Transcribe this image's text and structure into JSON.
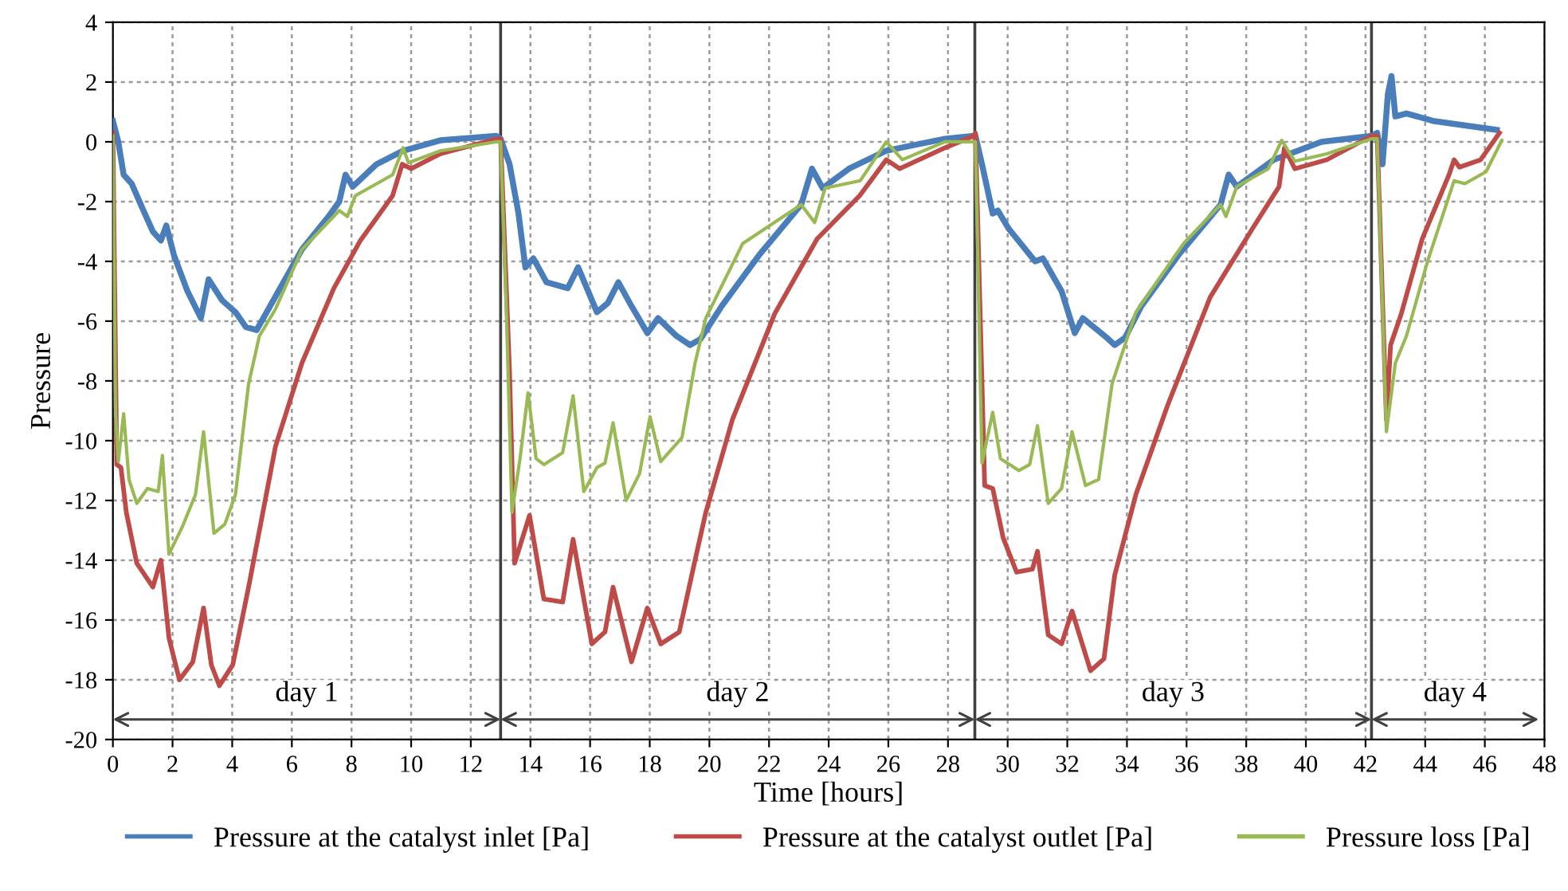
{
  "chart_data": {
    "type": "line",
    "xlabel": "Time [hours]",
    "ylabel": "Pressure",
    "xlim": [
      0,
      48
    ],
    "ylim": [
      -20,
      4
    ],
    "xticks": [
      0,
      2,
      4,
      6,
      8,
      10,
      12,
      14,
      16,
      18,
      20,
      22,
      24,
      26,
      28,
      30,
      32,
      34,
      36,
      38,
      40,
      42,
      44,
      46,
      48
    ],
    "yticks": [
      -20,
      -18,
      -16,
      -14,
      -12,
      -10,
      -8,
      -6,
      -4,
      -2,
      0,
      2,
      4
    ],
    "grid": true,
    "legend": "bottom",
    "marker": "none",
    "line_style": "solid",
    "ref_lines": [
      {
        "axis": "x",
        "value": 13.0,
        "color": "#404040"
      },
      {
        "axis": "x",
        "value": 28.9,
        "color": "#404040"
      },
      {
        "axis": "x",
        "value": 42.2,
        "color": "#404040"
      }
    ],
    "annotations": [
      "day 1",
      "day 2",
      "day 3",
      "day 4"
    ],
    "series": [
      {
        "name": "Pressure at the catalyst inlet [Pa]",
        "color": "#4a7ebb",
        "x": [
          0,
          0.18,
          0.36,
          0.63,
          0.98,
          1.34,
          1.61,
          1.79,
          2.05,
          2.5,
          2.95,
          3.21,
          3.66,
          4.11,
          4.46,
          4.82,
          5.27,
          6.34,
          7.23,
          7.59,
          7.8,
          8.04,
          8.84,
          9.73,
          10.98,
          12.86,
          13.0,
          13.3,
          13.6,
          13.83,
          14.1,
          14.54,
          15.25,
          15.6,
          16.23,
          16.59,
          16.95,
          17.39,
          17.92,
          18.28,
          18.9,
          19.35,
          19.7,
          20.41,
          21.66,
          23.08,
          23.44,
          23.8,
          24.68,
          25.93,
          27.9,
          28.86,
          28.92,
          29.14,
          29.5,
          29.67,
          30.03,
          30.92,
          31.18,
          31.81,
          32.25,
          32.52,
          33.32,
          33.59,
          33.94,
          34.48,
          35.72,
          37.14,
          37.41,
          37.68,
          38.92,
          40.52,
          42.2,
          42.39,
          42.57,
          42.75,
          42.87,
          43.0,
          43.37,
          44.26,
          46.4
        ],
        "values": [
          0.7,
          0,
          -1.1,
          -1.4,
          -2.2,
          -3.0,
          -3.3,
          -2.8,
          -3.8,
          -5.0,
          -5.9,
          -4.6,
          -5.3,
          -5.7,
          -6.2,
          -6.3,
          -5.5,
          -3.6,
          -2.5,
          -2.0,
          -1.1,
          -1.5,
          -0.75,
          -0.3,
          0.05,
          0.2,
          0.1,
          -0.75,
          -2.4,
          -4.2,
          -3.9,
          -4.7,
          -4.9,
          -4.2,
          -5.7,
          -5.4,
          -4.7,
          -5.5,
          -6.4,
          -5.9,
          -6.5,
          -6.8,
          -6.6,
          -5.5,
          -3.8,
          -2.1,
          -0.9,
          -1.55,
          -0.9,
          -0.3,
          0.1,
          0.2,
          0.2,
          -0.75,
          -2.4,
          -2.3,
          -2.9,
          -4.0,
          -3.9,
          -5.0,
          -6.4,
          -5.9,
          -6.55,
          -6.8,
          -6.55,
          -5.5,
          -3.8,
          -2.1,
          -1.1,
          -1.5,
          -0.6,
          0,
          0.2,
          0.3,
          -0.75,
          1.6,
          2.2,
          0.85,
          0.95,
          0.7,
          0.4
        ]
      },
      {
        "name": "Pressure at the catalyst outlet [Pa]",
        "color": "#be4b48",
        "x": [
          0,
          0.13,
          0.27,
          0.45,
          0.8,
          1.34,
          1.61,
          1.88,
          2.23,
          2.68,
          3.04,
          3.3,
          3.57,
          4.02,
          4.55,
          5.45,
          6.34,
          7.41,
          8.3,
          9.38,
          9.7,
          10.0,
          10.98,
          12.86,
          13.0,
          13.3,
          13.47,
          13.97,
          14.45,
          15.08,
          15.43,
          16.06,
          16.5,
          16.77,
          17.39,
          17.92,
          18.37,
          18.99,
          19.52,
          19.88,
          20.77,
          22.19,
          23.61,
          25.04,
          25.93,
          26.38,
          27.9,
          28.86,
          28.92,
          29.23,
          29.5,
          29.85,
          30.3,
          30.83,
          31.0,
          31.36,
          31.81,
          32.16,
          32.78,
          33.23,
          33.59,
          34.3,
          35.37,
          36.79,
          38.21,
          39.1,
          39.28,
          39.63,
          40.7,
          42.2,
          42.39,
          42.7,
          42.84,
          43.2,
          43.9,
          44.8,
          44.97,
          45.15,
          45.86,
          46.49
        ],
        "values": [
          0.3,
          -10.8,
          -10.9,
          -12.4,
          -14.1,
          -14.9,
          -14.0,
          -16.6,
          -18.0,
          -17.4,
          -15.6,
          -17.5,
          -18.2,
          -17.5,
          -14.9,
          -10.2,
          -7.4,
          -4.9,
          -3.3,
          -1.8,
          -0.75,
          -0.9,
          -0.4,
          0.1,
          0.1,
          -7.7,
          -14.1,
          -12.5,
          -15.3,
          -15.4,
          -13.3,
          -16.8,
          -16.4,
          -14.9,
          -17.4,
          -15.6,
          -16.8,
          -16.4,
          -14.0,
          -12.4,
          -9.3,
          -5.75,
          -3.25,
          -1.8,
          -0.6,
          -0.9,
          -0.2,
          0.2,
          0.3,
          -11.5,
          -11.6,
          -13.25,
          -14.4,
          -14.3,
          -13.7,
          -16.5,
          -16.8,
          -15.7,
          -17.7,
          -17.3,
          -14.5,
          -11.8,
          -8.8,
          -5.2,
          -2.9,
          -1.5,
          -0.2,
          -0.9,
          -0.6,
          0.2,
          0.2,
          -9.3,
          -6.8,
          -5.75,
          -3.25,
          -1.1,
          -0.6,
          -0.85,
          -0.6,
          0.3
        ]
      },
      {
        "name": "Pressure loss [Pa]",
        "color": "#98b954",
        "x": [
          0,
          0.09,
          0.18,
          0.36,
          0.54,
          0.8,
          1.16,
          1.52,
          1.66,
          1.88,
          2.32,
          2.77,
          3.04,
          3.39,
          3.75,
          4.11,
          4.55,
          4.91,
          5.45,
          6.34,
          7.59,
          7.86,
          8.13,
          9.38,
          9.73,
          9.91,
          10.98,
          12.86,
          13.0,
          13.2,
          13.38,
          13.65,
          13.92,
          14.19,
          14.45,
          15.08,
          15.43,
          15.79,
          16.23,
          16.5,
          16.77,
          17.21,
          17.66,
          18.01,
          18.37,
          19.08,
          19.52,
          19.88,
          21.12,
          23.08,
          23.53,
          23.88,
          25.06,
          25.93,
          26.47,
          27.9,
          28.86,
          28.92,
          29.14,
          29.5,
          29.76,
          30.38,
          30.74,
          31.0,
          31.36,
          31.81,
          32.16,
          32.61,
          33.05,
          33.5,
          34.3,
          35.9,
          37.14,
          37.32,
          37.68,
          38.74,
          39.19,
          39.63,
          40.7,
          42.2,
          42.39,
          42.7,
          43.0,
          43.37,
          44.08,
          44.97,
          45.33,
          46.04,
          46.57
        ],
        "values": [
          0.2,
          -9.1,
          -10.7,
          -9.1,
          -11.3,
          -12.1,
          -11.6,
          -11.7,
          -10.5,
          -13.8,
          -12.9,
          -11.8,
          -9.7,
          -13.1,
          -12.8,
          -11.8,
          -8.1,
          -6.5,
          -5.6,
          -3.6,
          -2.3,
          -2.5,
          -1.8,
          -1.1,
          -0.2,
          -0.7,
          -0.3,
          0,
          0,
          -5.9,
          -12.4,
          -10.6,
          -8.4,
          -10.6,
          -10.8,
          -10.4,
          -8.5,
          -11.7,
          -10.9,
          -10.75,
          -9.4,
          -12.0,
          -11.1,
          -9.2,
          -10.7,
          -9.9,
          -7.4,
          -5.9,
          -3.4,
          -2.1,
          -2.7,
          -1.55,
          -1.3,
          0,
          -0.6,
          0,
          0,
          0,
          -10.75,
          -9.05,
          -10.6,
          -11.0,
          -10.8,
          -9.5,
          -12.1,
          -11.6,
          -9.7,
          -11.5,
          -11.3,
          -8.1,
          -5.7,
          -3.4,
          -2.1,
          -2.5,
          -1.5,
          -0.9,
          0.05,
          -0.65,
          -0.4,
          0.1,
          0.1,
          -9.7,
          -7.4,
          -6.5,
          -4.0,
          -1.3,
          -1.4,
          -1.0,
          0.05
        ]
      }
    ]
  }
}
